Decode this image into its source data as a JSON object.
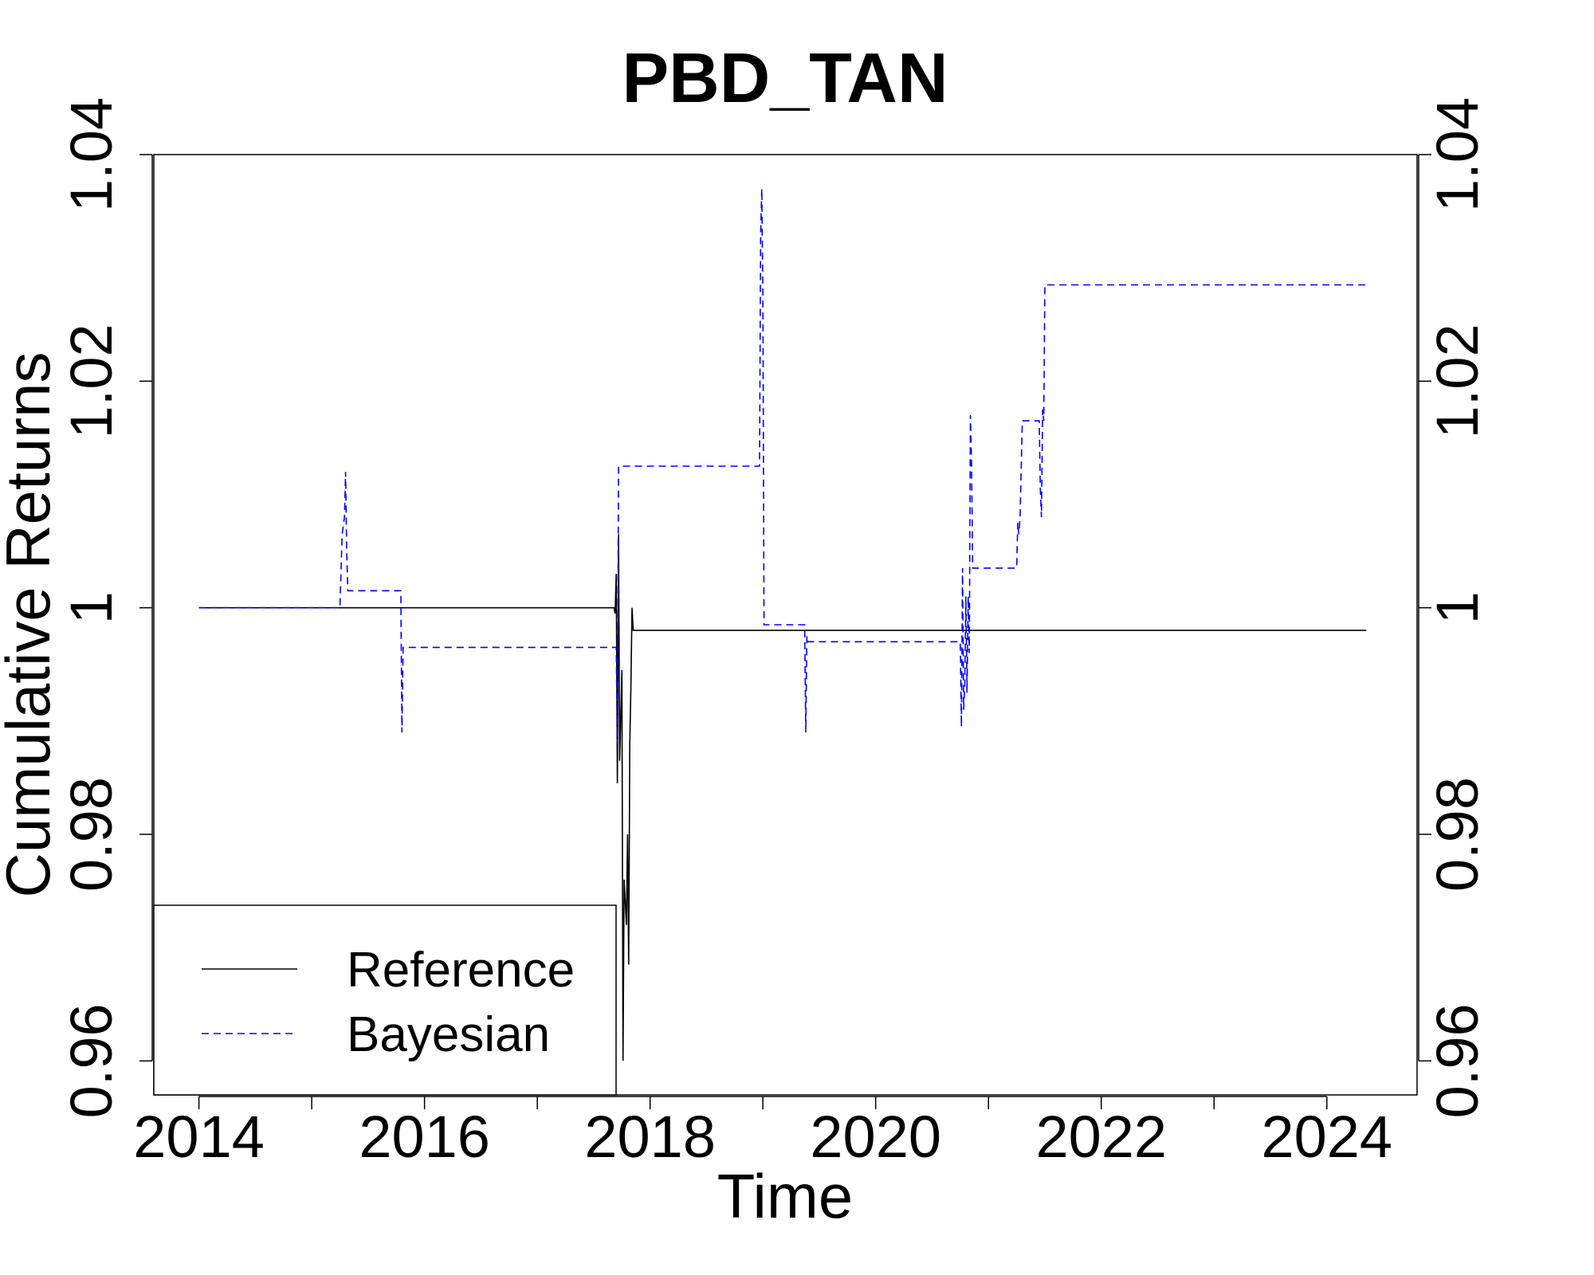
{
  "chart_data": {
    "type": "line",
    "title": "PBD_TAN",
    "xlabel": "Time",
    "ylabel": "Cumulative Returns",
    "xlim": [
      2013.6,
      2024.8
    ],
    "ylim": [
      0.957,
      1.04
    ],
    "x_ticks": [
      2014,
      2016,
      2018,
      2020,
      2022,
      2024
    ],
    "x_tick_labels": [
      "2014",
      "2016",
      "2018",
      "2020",
      "2022",
      "2024"
    ],
    "x_minor_ticks": [
      2015,
      2017,
      2019,
      2021,
      2023
    ],
    "y_ticks": [
      0.96,
      0.98,
      1.0,
      1.02,
      1.04
    ],
    "y_tick_labels": [
      "0.96",
      "0.98",
      "1",
      "1.02",
      "1.04"
    ],
    "legend_position": "bottom-left",
    "grid": false,
    "series": [
      {
        "name": "Reference",
        "color": "#000000",
        "dash": "solid",
        "points": [
          [
            2014.0,
            1.0
          ],
          [
            2017.68,
            1.0
          ],
          [
            2017.69,
            0.9995
          ],
          [
            2017.7,
            1.003
          ],
          [
            2017.71,
            0.9845
          ],
          [
            2017.72,
            1.0065
          ],
          [
            2017.73,
            0.9865
          ],
          [
            2017.75,
            0.9945
          ],
          [
            2017.76,
            0.96
          ],
          [
            2017.77,
            0.976
          ],
          [
            2017.79,
            0.972
          ],
          [
            2017.8,
            0.98
          ],
          [
            2017.81,
            0.9685
          ],
          [
            2017.82,
            0.988
          ],
          [
            2017.83,
            0.993
          ],
          [
            2017.84,
            1.0
          ],
          [
            2017.85,
            0.998
          ],
          [
            2024.35,
            0.998
          ]
        ]
      },
      {
        "name": "Bayesian",
        "color": "#0000ff",
        "dash": "dashed",
        "points": [
          [
            2014.0,
            1.0
          ],
          [
            2015.25,
            1.0
          ],
          [
            2015.27,
            1.0065
          ],
          [
            2015.29,
            1.008
          ],
          [
            2015.3,
            1.012
          ],
          [
            2015.31,
            1.005
          ],
          [
            2015.32,
            1.0015
          ],
          [
            2015.79,
            1.0015
          ],
          [
            2015.8,
            0.989
          ],
          [
            2015.81,
            0.9965
          ],
          [
            2017.7,
            0.9965
          ],
          [
            2017.71,
            0.988
          ],
          [
            2017.72,
            1.0125
          ],
          [
            2018.97,
            1.0125
          ],
          [
            2018.98,
            1.033
          ],
          [
            2018.99,
            1.037
          ],
          [
            2019.0,
            1.0275
          ],
          [
            2019.01,
            0.9985
          ],
          [
            2019.37,
            0.9985
          ],
          [
            2019.38,
            0.989
          ],
          [
            2019.39,
            0.9975
          ],
          [
            2019.4,
            0.997
          ],
          [
            2020.75,
            0.997
          ],
          [
            2020.76,
            0.9895
          ],
          [
            2020.77,
            1.0035
          ],
          [
            2020.78,
            0.991
          ],
          [
            2020.79,
            0.993
          ],
          [
            2020.8,
            1.001
          ],
          [
            2020.81,
            0.9925
          ],
          [
            2020.82,
            1.001
          ],
          [
            2020.83,
            0.996
          ],
          [
            2020.84,
            1.017
          ],
          [
            2020.85,
            1.0125
          ],
          [
            2020.86,
            1.0035
          ],
          [
            2021.25,
            1.0035
          ],
          [
            2021.26,
            1.0075
          ],
          [
            2021.27,
            1.0065
          ],
          [
            2021.28,
            1.008
          ],
          [
            2021.3,
            1.0165
          ],
          [
            2021.45,
            1.0165
          ],
          [
            2021.46,
            1.0105
          ],
          [
            2021.47,
            1.008
          ],
          [
            2021.48,
            1.0175
          ],
          [
            2021.49,
            1.0165
          ],
          [
            2021.5,
            1.0285
          ],
          [
            2024.35,
            1.0285
          ]
        ]
      }
    ]
  }
}
